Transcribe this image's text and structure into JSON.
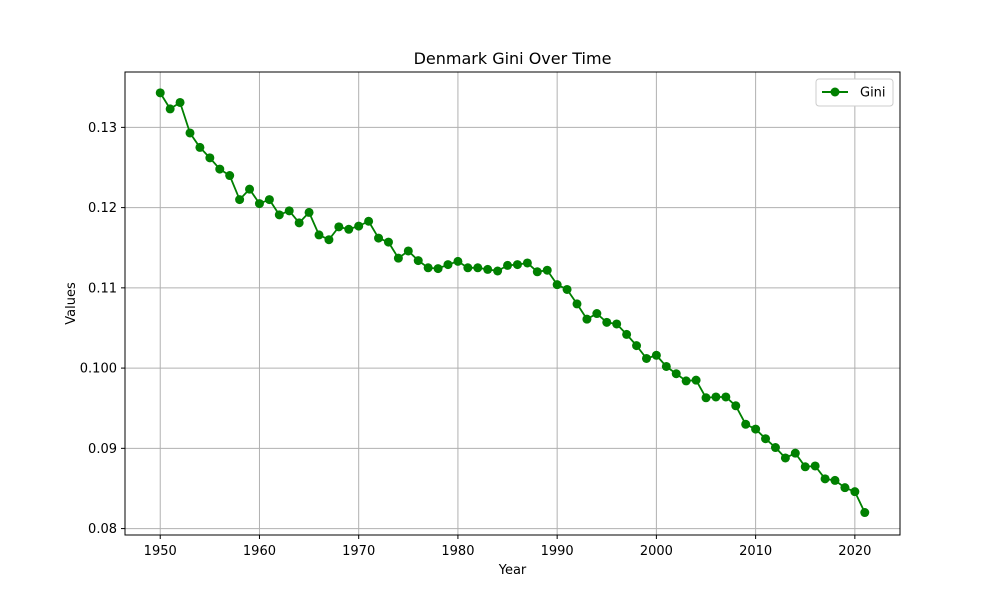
{
  "chart_data": {
    "type": "line",
    "title": "Denmark Gini Over Time",
    "xlabel": "Year",
    "ylabel": "Values",
    "xlim": [
      1946.45,
      2024.55
    ],
    "ylim": [
      0.0792,
      0.1369
    ],
    "xticks": [
      1950,
      1960,
      1970,
      1980,
      1990,
      2000,
      2010,
      2020
    ],
    "xtick_labels": [
      "1950",
      "1960",
      "1970",
      "1980",
      "1990",
      "2000",
      "2010",
      "2020"
    ],
    "yticks": [
      0.08,
      0.09,
      0.1,
      0.11,
      0.12,
      0.13
    ],
    "ytick_labels": [
      "0.08",
      "0.09",
      "0.100",
      "0.11",
      "0.12",
      "0.13"
    ],
    "grid": true,
    "legend_position": "top-right",
    "x": [
      1950,
      1951,
      1952,
      1953,
      1954,
      1955,
      1956,
      1957,
      1958,
      1959,
      1960,
      1961,
      1962,
      1963,
      1964,
      1965,
      1966,
      1967,
      1968,
      1969,
      1970,
      1971,
      1972,
      1973,
      1974,
      1975,
      1976,
      1977,
      1978,
      1979,
      1980,
      1981,
      1982,
      1983,
      1984,
      1985,
      1986,
      1987,
      1988,
      1989,
      1990,
      1991,
      1992,
      1993,
      1994,
      1995,
      1996,
      1997,
      1998,
      1999,
      2000,
      2001,
      2002,
      2003,
      2004,
      2005,
      2006,
      2007,
      2008,
      2009,
      2010,
      2011,
      2012,
      2013,
      2014,
      2015,
      2016,
      2017,
      2018,
      2019,
      2020,
      2021
    ],
    "series": [
      {
        "name": "Gini",
        "color": "#008000",
        "marker": "circle",
        "values": [
          0.1343,
          0.1323,
          0.1331,
          0.1293,
          0.1275,
          0.1262,
          0.1248,
          0.124,
          0.121,
          0.1223,
          0.1205,
          0.121,
          0.1191,
          0.1196,
          0.1181,
          0.1194,
          0.1166,
          0.116,
          0.1176,
          0.1173,
          0.1177,
          0.1183,
          0.1162,
          0.1157,
          0.1137,
          0.1146,
          0.1134,
          0.1125,
          0.1124,
          0.1129,
          0.1133,
          0.1125,
          0.1125,
          0.1123,
          0.1121,
          0.1128,
          0.1129,
          0.1131,
          0.112,
          0.1122,
          0.1104,
          0.1098,
          0.108,
          0.1061,
          0.1068,
          0.1057,
          0.1055,
          0.1042,
          0.1028,
          0.1012,
          0.1016,
          0.1002,
          0.0993,
          0.0984,
          0.0985,
          0.0963,
          0.0964,
          0.0964,
          0.0953,
          0.093,
          0.0924,
          0.0912,
          0.0901,
          0.0888,
          0.0894,
          0.0877,
          0.0878,
          0.0862,
          0.086,
          0.0851,
          0.0846,
          0.082
        ]
      }
    ]
  }
}
